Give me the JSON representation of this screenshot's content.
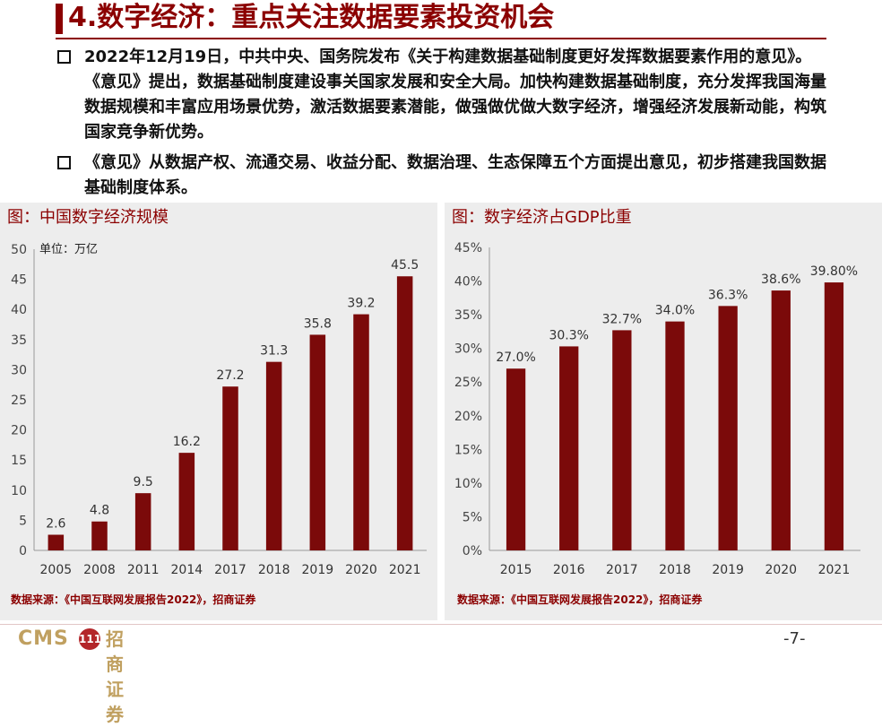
{
  "header": {
    "title": "4.数字经济：重点关注数据要素投资机会"
  },
  "bullets": [
    "2022年12月19日，中共中央、国务院发布《关于构建数据基础制度更好发挥数据要素作用的意见》。《意见》提出，数据基础制度建设事关国家发展和安全大局。加快构建数据基础制度，充分发挥我国海量数据规模和丰富应用场景优势，激活数据要素潜能，做强做优做大数字经济，增强经济发展新动能，构筑国家竞争新优势。",
    "《意见》从数据产权、流通交易、收益分配、数据治理、生态保障五个方面提出意见，初步搭建我国数据基础制度体系。"
  ],
  "left_panel": {
    "title": "图：中国数字经济规模",
    "unit_note": "单位：万亿",
    "source": "数据来源：《中国互联网发展报告2022》，招商证券"
  },
  "right_panel": {
    "title": "图：数字经济占GDP比重",
    "source": "数据来源：《中国互联网发展报告2022》，招商证券"
  },
  "chart_data": [
    {
      "type": "bar",
      "title": "图：中国数字经济规模",
      "ylabel": "单位：万亿",
      "categories": [
        "2005",
        "2008",
        "2011",
        "2014",
        "2017",
        "2018",
        "2019",
        "2020",
        "2021"
      ],
      "values": [
        2.6,
        4.8,
        9.5,
        16.2,
        27.2,
        31.3,
        35.8,
        39.2,
        45.5
      ],
      "value_labels": [
        "2.6",
        "4.8",
        "9.5",
        "16.2",
        "27.2",
        "31.3",
        "35.8",
        "39.2",
        "45.5"
      ],
      "ylim": [
        0,
        50
      ],
      "yticks": [
        "0",
        "5",
        "10",
        "15",
        "20",
        "25",
        "30",
        "35",
        "40",
        "45",
        "50"
      ],
      "grid": false,
      "bar_color": "#7b0a0a"
    },
    {
      "type": "bar",
      "title": "图：数字经济占GDP比重",
      "categories": [
        "2015",
        "2016",
        "2017",
        "2018",
        "2019",
        "2020",
        "2021"
      ],
      "values": [
        27.0,
        30.3,
        32.7,
        34.0,
        36.3,
        38.6,
        39.8
      ],
      "value_labels": [
        "27.0%",
        "30.3%",
        "32.7%",
        "34.0%",
        "36.3%",
        "38.6%",
        "39.80%"
      ],
      "ylim": [
        0,
        45
      ],
      "yticks": [
        "0%",
        "5%",
        "10%",
        "15%",
        "20%",
        "25%",
        "30%",
        "35%",
        "40%",
        "45%"
      ],
      "grid": false,
      "bar_color": "#7b0a0a"
    }
  ],
  "footer": {
    "logo_text": "CMS",
    "logo_mark": "111",
    "logo_cn": "招商证券",
    "page_number": "-7-"
  }
}
